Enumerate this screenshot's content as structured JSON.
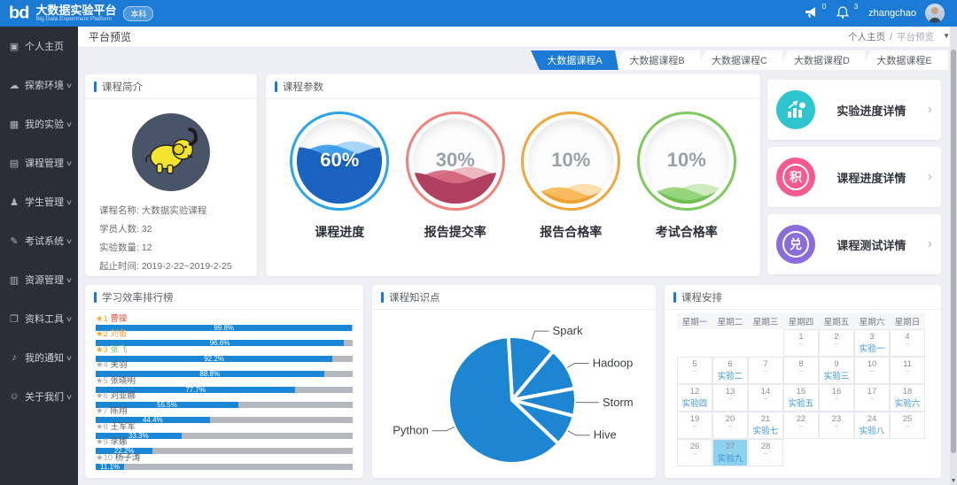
{
  "header": {
    "logo_text": "bd",
    "app_title": "大数据实验平台",
    "app_subtitle": "Big Data Experiment Platform",
    "badge": "本科",
    "megaphone_count": "0",
    "bell_count": "3",
    "username": "zhangchao"
  },
  "sidebar": {
    "items": [
      {
        "label": "个人主页",
        "icon": "home-monitor-icon",
        "glyph": "▣",
        "has_submenu": false
      },
      {
        "label": "探索环境",
        "icon": "cloud-icon",
        "glyph": "☁",
        "has_submenu": true
      },
      {
        "label": "我的实验",
        "icon": "grid-icon",
        "glyph": "▦",
        "has_submenu": true
      },
      {
        "label": "课程管理",
        "icon": "document-icon",
        "glyph": "▤",
        "has_submenu": true
      },
      {
        "label": "学生管理",
        "icon": "student-icon",
        "glyph": "♟",
        "has_submenu": true
      },
      {
        "label": "考试系统",
        "icon": "graduation-cap-icon",
        "glyph": "✎",
        "has_submenu": true
      },
      {
        "label": "资源管理",
        "icon": "book-icon",
        "glyph": "▥",
        "has_submenu": true
      },
      {
        "label": "资料工具",
        "icon": "folder-icon",
        "glyph": "❐",
        "has_submenu": true
      },
      {
        "label": "我的通知",
        "icon": "speaker-icon",
        "glyph": "♪",
        "has_submenu": true
      },
      {
        "label": "关于我们",
        "icon": "people-icon",
        "glyph": "☺",
        "has_submenu": true
      }
    ]
  },
  "breadcrumb": {
    "page_title": "平台预览",
    "home": "个人主页",
    "separator": "/",
    "current": "平台预览"
  },
  "tabs": [
    {
      "label": "大数据课程A",
      "active": true
    },
    {
      "label": "大数据课程B",
      "active": false
    },
    {
      "label": "大数据课程C",
      "active": false
    },
    {
      "label": "大数据课程D",
      "active": false
    },
    {
      "label": "大数据课程E",
      "active": false
    }
  ],
  "course_intro": {
    "title": "课程简介",
    "logo_icon": "hadoop-elephant-logo",
    "fields": [
      {
        "label": "课程名称",
        "value": "大数据实验课程"
      },
      {
        "label": "学员人数",
        "value": "32"
      },
      {
        "label": "实验数量",
        "value": "12"
      },
      {
        "label": "起止时间",
        "value": "2019-2-22~2019-2-25"
      }
    ]
  },
  "course_params": {
    "title": "课程参数",
    "gauges": [
      {
        "value": 60,
        "display": "60%",
        "label": "课程进度",
        "ring": "#2ba6ea",
        "waves": [
          "#1a63c0",
          "#2a93e8",
          "#5fb5f2"
        ],
        "text_color": "#ffffff"
      },
      {
        "value": 30,
        "display": "30%",
        "label": "报告提交率",
        "ring": "#f0837d",
        "waves": [
          "#b03f60",
          "#cf5b76",
          "#e0818f"
        ],
        "text_color": "#9ba1a8"
      },
      {
        "value": 10,
        "display": "10%",
        "label": "报告合格率",
        "ring": "#f0a73c",
        "waves": [
          "#ef9f2e",
          "#f6b44e",
          "#f9c66f"
        ],
        "text_color": "#9ba1a8"
      },
      {
        "value": 10,
        "display": "10%",
        "label": "考试合格率",
        "ring": "#7dca5e",
        "waves": [
          "#6fbe50",
          "#8bd06e",
          "#a5dc8d"
        ],
        "text_color": "#9ba1a8"
      }
    ]
  },
  "detail_links": [
    {
      "label": "实验进度详情",
      "icon": "bar-chart-arrow-icon",
      "color": "#2fc5cf",
      "seal_char": ""
    },
    {
      "label": "课程进度详情",
      "icon": "ji-seal-icon",
      "color": "#f85a90",
      "seal_char": "积"
    },
    {
      "label": "课程测试详情",
      "icon": "dui-seal-icon",
      "color": "#8a6cdb",
      "seal_char": "兑"
    }
  ],
  "chart_data": [
    {
      "type": "bar",
      "title": "学习效率排行榜",
      "orientation": "horizontal",
      "xlim": [
        0,
        100
      ],
      "bar_color": "#1a87d6",
      "track_color": "#b4b8bd",
      "categories": [
        "曹操",
        "刘备",
        "张飞",
        "关羽",
        "张晓明",
        "刘亚娜",
        "陈翔",
        "王军军",
        "李娜",
        "杨子涛"
      ],
      "values": [
        99.8,
        96.6,
        92.2,
        88.8,
        77.7,
        55.5,
        44.4,
        33.3,
        22.2,
        11.1
      ],
      "entries": [
        {
          "rank": 1,
          "name": "曹操",
          "display": "99.8%",
          "value": 99.8,
          "star_color": "#f5a623",
          "name_color": "#e64c3c"
        },
        {
          "rank": 2,
          "name": "刘备",
          "display": "96.6%",
          "value": 96.6,
          "star_color": "#f5a623",
          "name_color": "#f0a648"
        },
        {
          "rank": 3,
          "name": "张飞",
          "display": "92.2%",
          "value": 92.2,
          "star_color": "#f5a623",
          "name_color": "#7cc96b"
        },
        {
          "rank": 4,
          "name": "关羽",
          "display": "88.8%",
          "value": 88.8,
          "star_color": "#a7adb3",
          "name_color": "#5a6066"
        },
        {
          "rank": 5,
          "name": "张晓明",
          "display": "77.7%",
          "value": 77.7,
          "star_color": "#a7adb3",
          "name_color": "#5a6066"
        },
        {
          "rank": 6,
          "name": "刘亚娜",
          "display": "55.5%",
          "value": 55.5,
          "star_color": "#a7adb3",
          "name_color": "#5a6066"
        },
        {
          "rank": 7,
          "name": "陈翔",
          "display": "44.4%",
          "value": 44.4,
          "star_color": "#a7adb3",
          "name_color": "#5a6066"
        },
        {
          "rank": 8,
          "name": "王军军",
          "display": "33.3%",
          "value": 33.3,
          "star_color": "#a7adb3",
          "name_color": "#5a6066"
        },
        {
          "rank": 9,
          "name": "李娜",
          "display": "22.2%",
          "value": 22.2,
          "star_color": "#a7adb3",
          "name_color": "#5a6066"
        },
        {
          "rank": 10,
          "name": "杨子涛",
          "display": "11.1%",
          "value": 11.1,
          "star_color": "#a7adb3",
          "name_color": "#5a6066"
        }
      ]
    },
    {
      "type": "pie",
      "title": "课程知识点",
      "slice_color": "#1d86d2",
      "slices": [
        {
          "label": "Spark",
          "value": 12
        },
        {
          "label": "Hadoop",
          "value": 11
        },
        {
          "label": "Storm",
          "value": 7
        },
        {
          "label": "Hive",
          "value": 8
        },
        {
          "label": "Python",
          "value": 62
        }
      ]
    }
  ],
  "schedule": {
    "title": "课程安排",
    "weekdays": [
      "星期一",
      "星期二",
      "星期三",
      "星期四",
      "星期五",
      "星期六",
      "星期日"
    ],
    "highlight_color": "#8ed2f0",
    "weeks": [
      [
        {},
        {},
        {},
        {
          "day": 1
        },
        {
          "day": 2
        },
        {
          "day": 3,
          "event": "实验一"
        },
        {
          "day": 4
        }
      ],
      [
        {
          "day": 5
        },
        {
          "day": 6,
          "event": "实验二"
        },
        {
          "day": 7
        },
        {
          "day": 8
        },
        {
          "day": 9,
          "event": "实验三"
        },
        {
          "day": 10
        },
        {
          "day": 11
        }
      ],
      [
        {
          "day": 12,
          "event": "实验四"
        },
        {
          "day": 13
        },
        {
          "day": 14
        },
        {
          "day": 15,
          "event": "实验五"
        },
        {
          "day": 16
        },
        {
          "day": 17
        },
        {
          "day": 18,
          "event": "实验六"
        }
      ],
      [
        {
          "day": 19
        },
        {
          "day": 20
        },
        {
          "day": 21,
          "event": "实验七"
        },
        {
          "day": 22
        },
        {
          "day": 23
        },
        {
          "day": 24,
          "event": "实验八"
        },
        {
          "day": 25
        }
      ],
      [
        {
          "day": 26
        },
        {
          "day": 27,
          "event": "实验九",
          "highlight": true
        },
        {
          "day": 28
        },
        {},
        {},
        {},
        {}
      ]
    ]
  }
}
